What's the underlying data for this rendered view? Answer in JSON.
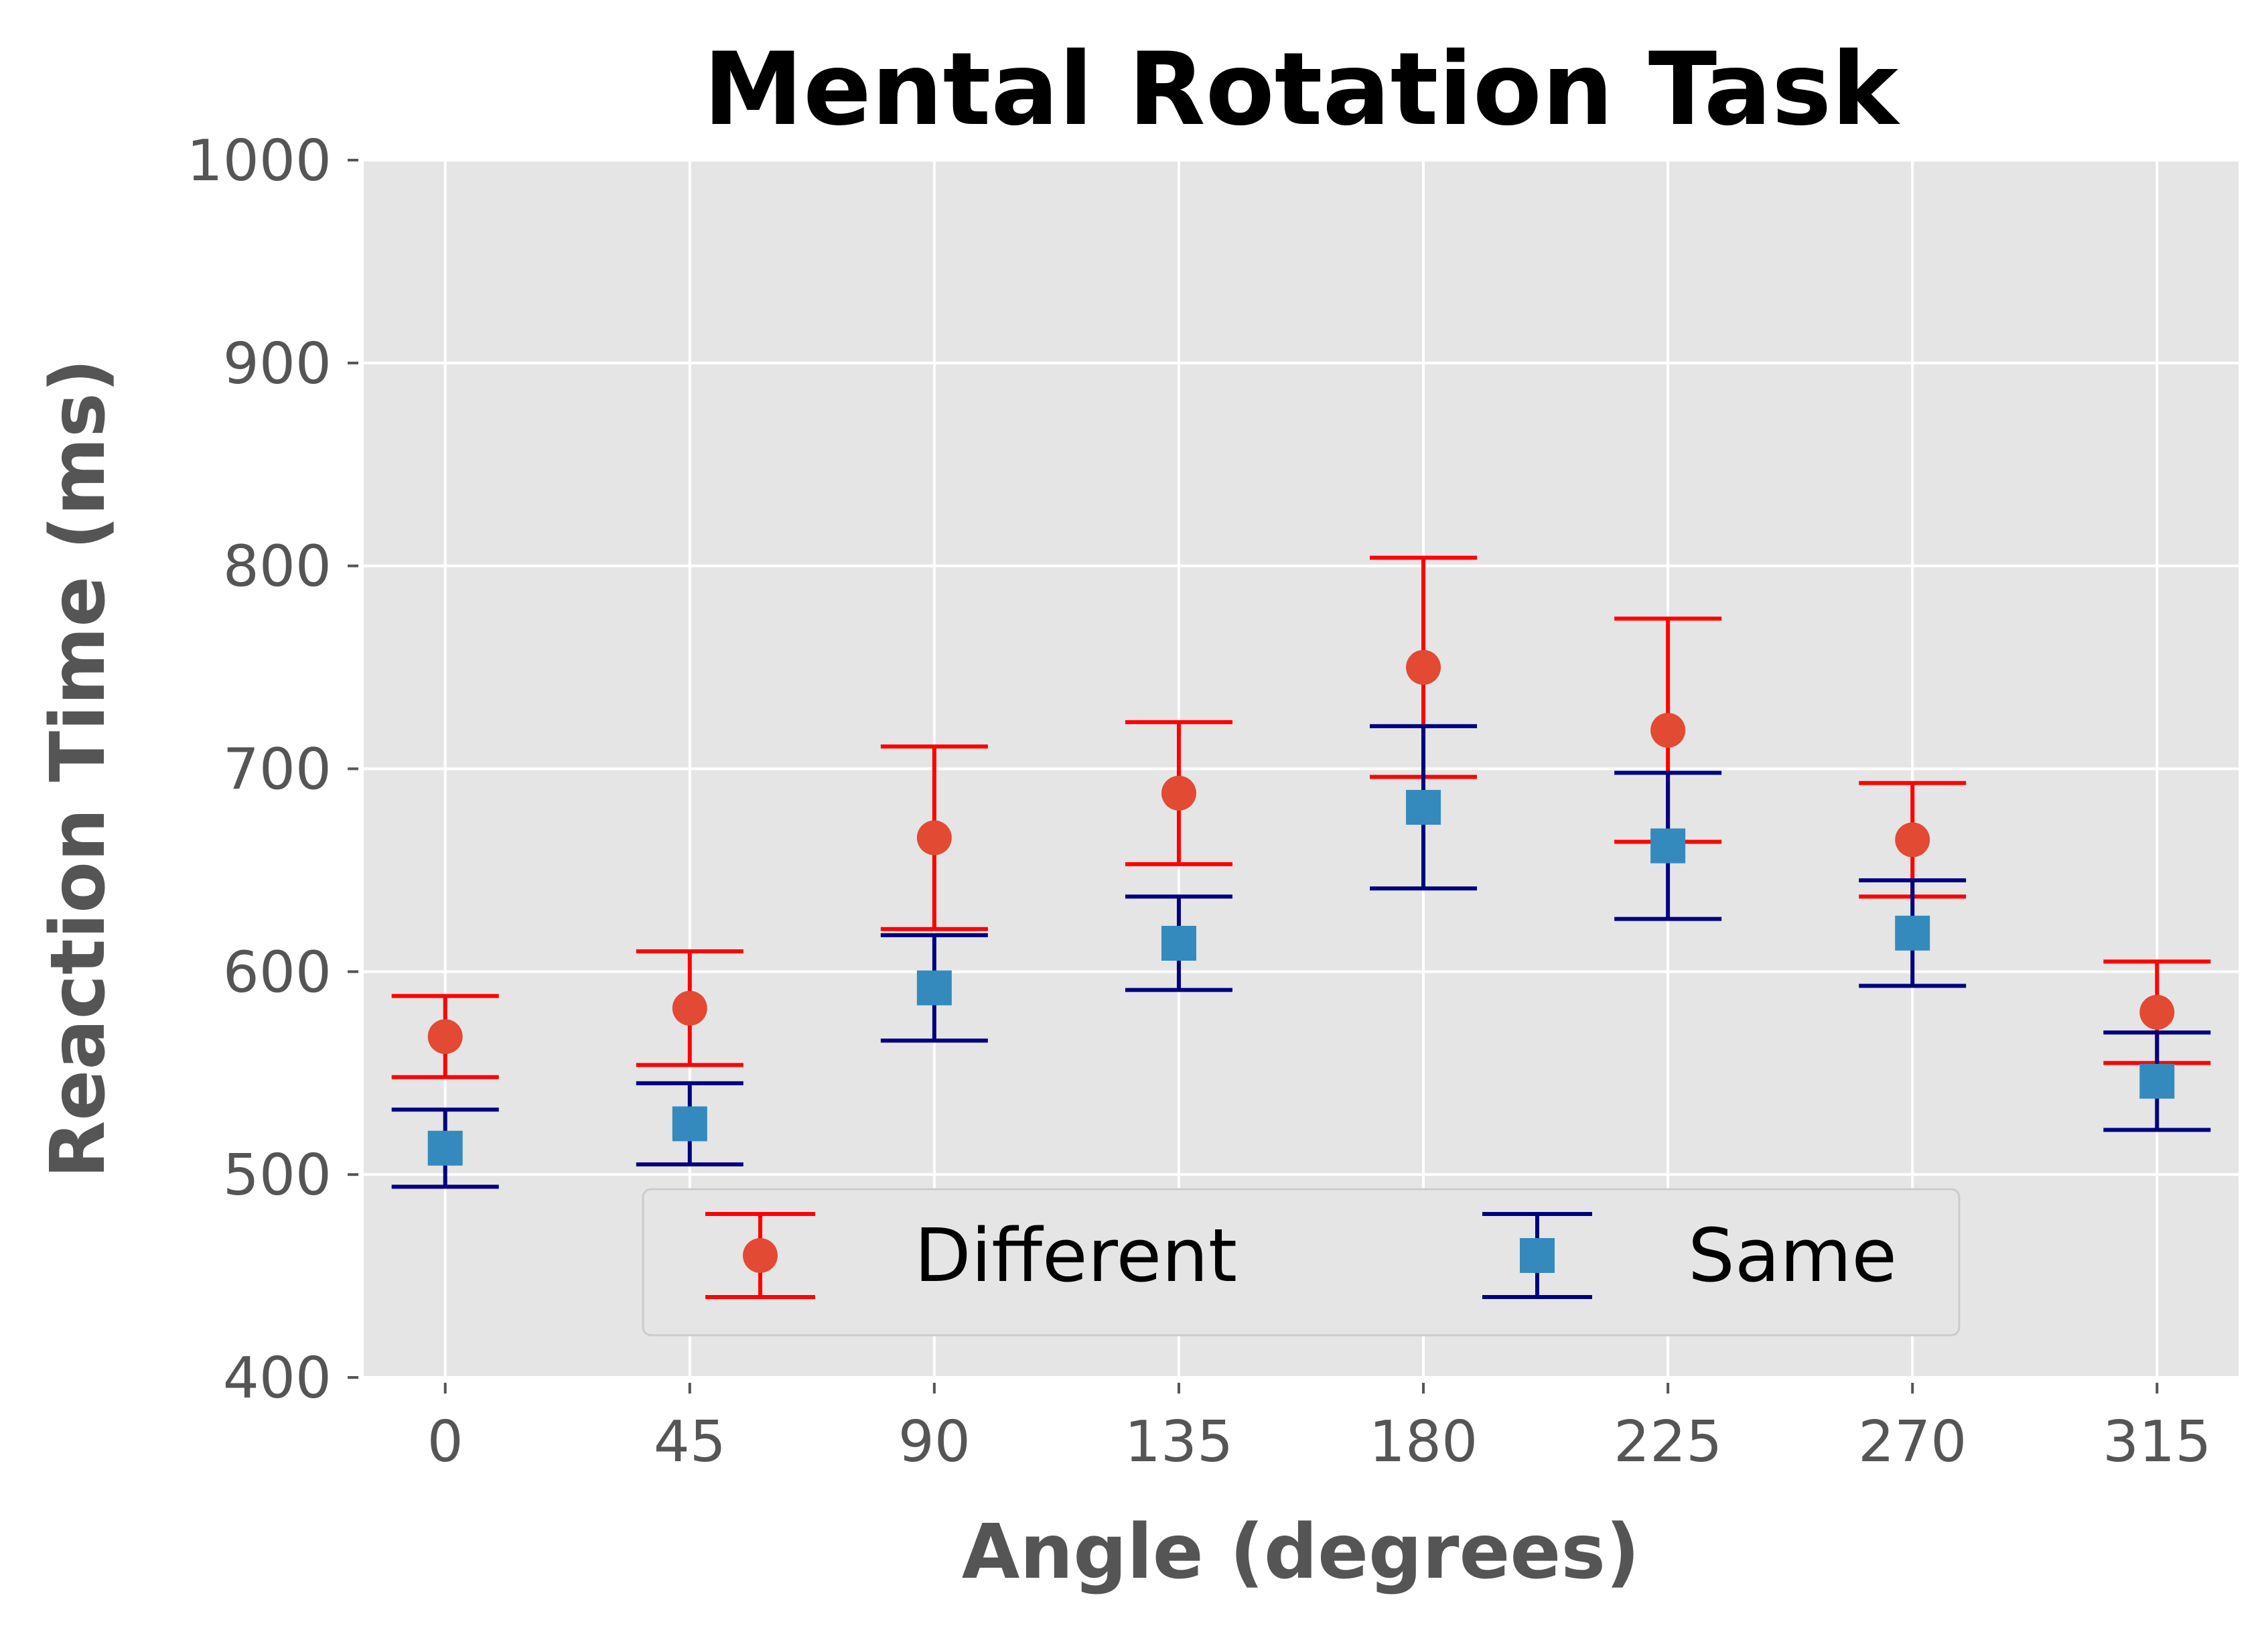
{
  "chart_data": {
    "type": "scatter",
    "title": "Mental Rotation Task",
    "xlabel": "Angle (degrees)",
    "ylabel": "Reaction Time (ms)",
    "x": [
      0,
      45,
      90,
      135,
      180,
      225,
      270,
      315
    ],
    "xlim": [
      -15,
      330
    ],
    "ylim": [
      400,
      1000
    ],
    "yticks": [
      400,
      500,
      600,
      700,
      800,
      900,
      1000
    ],
    "grid": true,
    "legend": "lower-center",
    "series": [
      {
        "name": "Different",
        "marker": "circle",
        "values": [
          568,
          582,
          666,
          688,
          750,
          719,
          665,
          580
        ],
        "errors": [
          20,
          28,
          45,
          35,
          54,
          55,
          28,
          25
        ],
        "marker_color": "#E24A33",
        "error_color": "#FF0000"
      },
      {
        "name": "Same",
        "marker": "square",
        "values": [
          513,
          525,
          592,
          614,
          681,
          662,
          619,
          546
        ],
        "errors": [
          19,
          20,
          26,
          23,
          40,
          36,
          26,
          24
        ],
        "marker_color": "#348ABD",
        "error_color": "#000080"
      }
    ],
    "background_color": "#E5E5E5",
    "grid_color": "#FFFFFF"
  }
}
